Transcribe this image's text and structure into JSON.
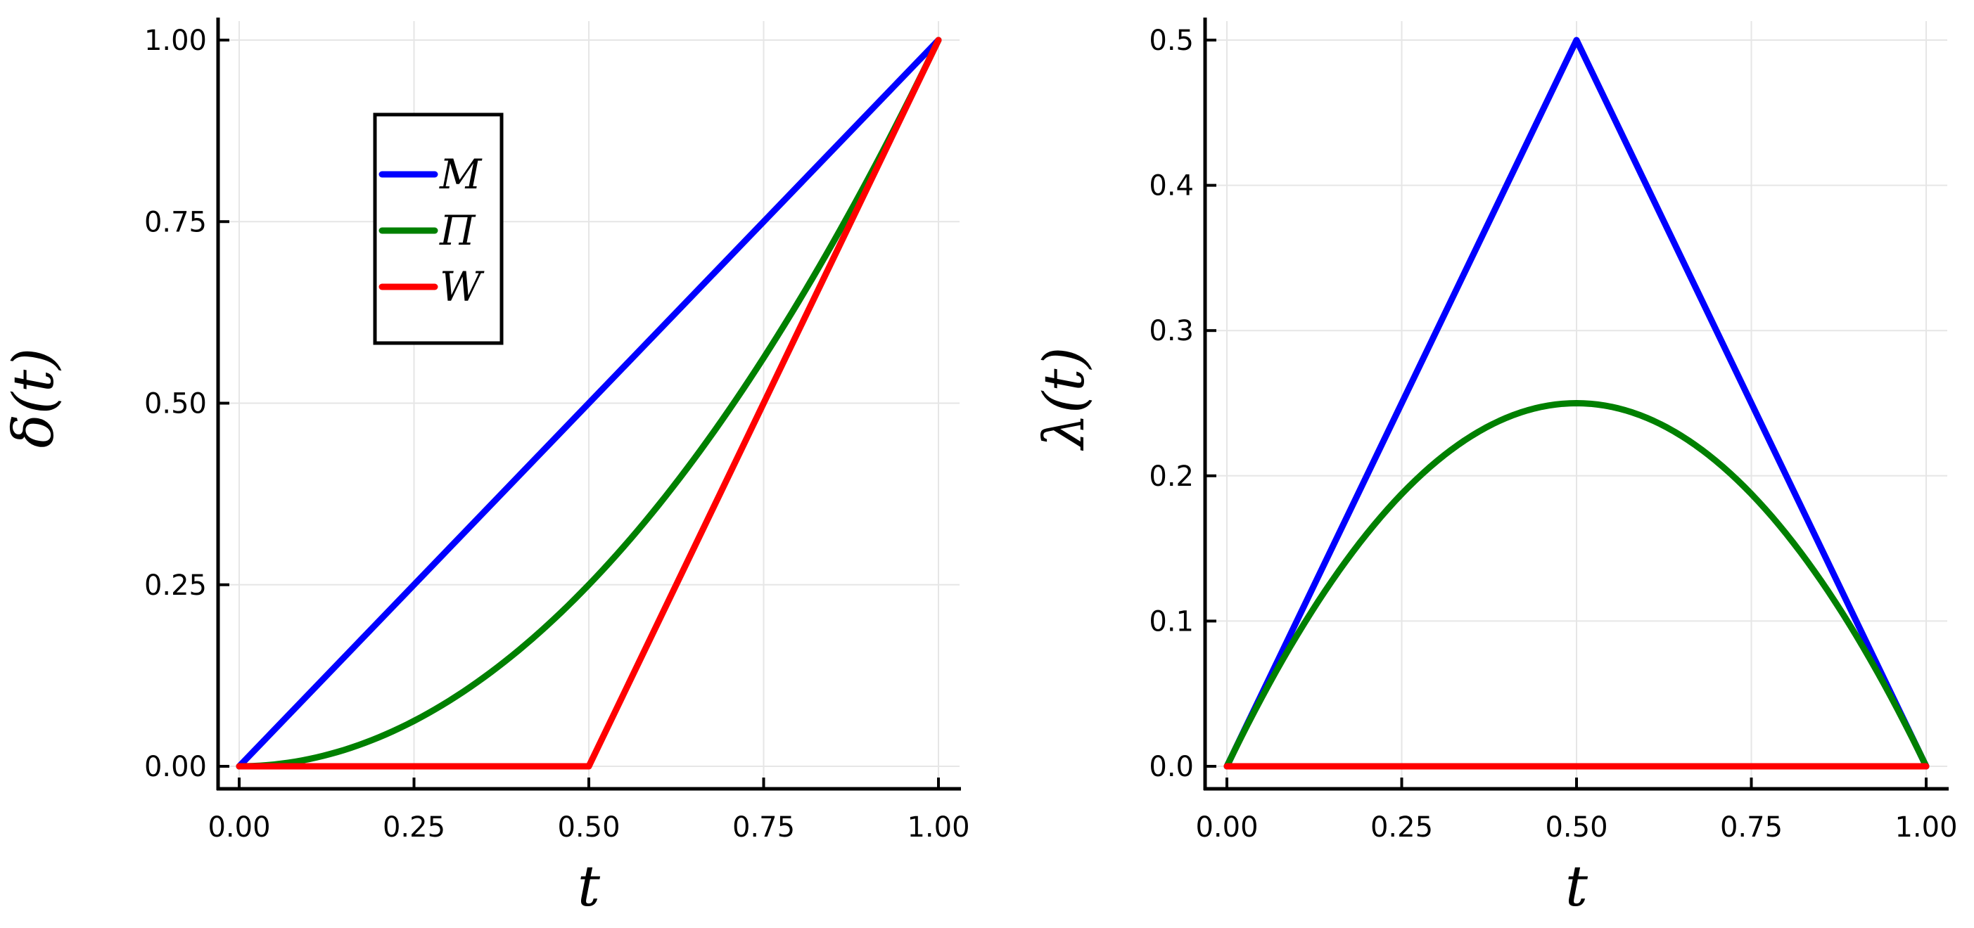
{
  "chart_data": [
    {
      "type": "line",
      "xlabel": "t",
      "ylabel": "δ(t)",
      "xlim": [
        0,
        1
      ],
      "ylim": [
        0,
        1
      ],
      "xticks": [
        "0.00",
        "0.25",
        "0.50",
        "0.75",
        "1.00"
      ],
      "yticks": [
        "0.00",
        "0.25",
        "0.50",
        "0.75",
        "1.00"
      ],
      "grid": true,
      "legend": "upper-left",
      "series": [
        {
          "name": "M",
          "color": "#0000ff",
          "x": [
            0,
            1
          ],
          "y": [
            0,
            1
          ]
        },
        {
          "name": "Π",
          "color": "#008000",
          "formula": "t^2",
          "x": [
            0,
            0.25,
            0.5,
            0.75,
            1
          ],
          "y": [
            0,
            0.0625,
            0.25,
            0.5625,
            1
          ]
        },
        {
          "name": "W",
          "color": "#ff0000",
          "x": [
            0,
            0.5,
            1
          ],
          "y": [
            0,
            0,
            1
          ]
        }
      ]
    },
    {
      "type": "line",
      "xlabel": "t",
      "ylabel": "λ(t)",
      "xlim": [
        0,
        1
      ],
      "ylim": [
        0,
        0.5
      ],
      "xticks": [
        "0.00",
        "0.25",
        "0.50",
        "0.75",
        "1.00"
      ],
      "yticks": [
        "0.0",
        "0.1",
        "0.2",
        "0.3",
        "0.4",
        "0.5"
      ],
      "grid": true,
      "series": [
        {
          "color": "#0000ff",
          "x": [
            0,
            0.5,
            1
          ],
          "y": [
            0,
            0.5,
            0
          ]
        },
        {
          "color": "#008000",
          "formula": "t(1-t)",
          "x": [
            0,
            0.25,
            0.5,
            0.75,
            1
          ],
          "y": [
            0,
            0.1875,
            0.25,
            0.1875,
            0
          ]
        },
        {
          "color": "#ff0000",
          "x": [
            0,
            1
          ],
          "y": [
            0,
            0
          ]
        }
      ]
    }
  ]
}
